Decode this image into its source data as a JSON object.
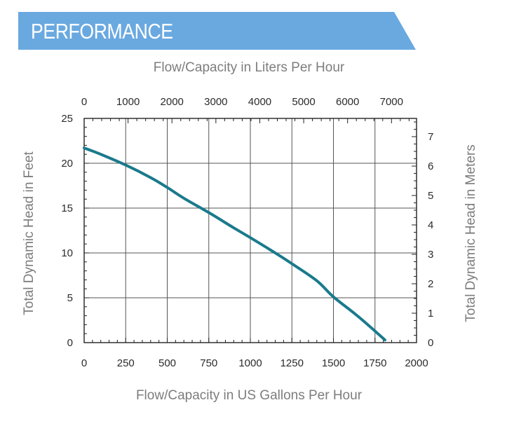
{
  "header": {
    "title": "PERFORMANCE",
    "color": "#6aa9e0"
  },
  "chart_data": {
    "type": "line",
    "title": "",
    "xlabel": "Flow/Capacity in US Gallons Per Hour",
    "ylabel": "Total Dynamic Head in Feet",
    "x2label": "Flow/Capacity in Liters Per Hour",
    "y2label": "Total Dynamic Head in Meters",
    "xlim": [
      0,
      2000
    ],
    "ylim": [
      0,
      25
    ],
    "x2lim": [
      0,
      7570
    ],
    "y2lim": [
      0,
      7.62
    ],
    "x_ticks": [
      "0",
      "250",
      "500",
      "750",
      "1000",
      "1250",
      "1500",
      "1750",
      "2000"
    ],
    "y_ticks": [
      "0",
      "5",
      "10",
      "15",
      "20",
      "25"
    ],
    "x2_ticks": [
      "0",
      "1000",
      "2000",
      "3000",
      "4000",
      "5000",
      "6000",
      "7000"
    ],
    "y2_ticks": [
      "0",
      "1",
      "2",
      "3",
      "4",
      "5",
      "6",
      "7"
    ],
    "grid": true,
    "line_color": "#1a7a8c",
    "series": [
      {
        "x": [
          0,
          100,
          250,
          400,
          500,
          600,
          750,
          900,
          1000,
          1150,
          1250,
          1400,
          1500,
          1650,
          1810
        ],
        "y": [
          21.7,
          21.0,
          19.8,
          18.4,
          17.3,
          16.1,
          14.5,
          12.8,
          11.7,
          10.0,
          8.8,
          6.9,
          5.1,
          2.9,
          0.3
        ]
      }
    ]
  }
}
